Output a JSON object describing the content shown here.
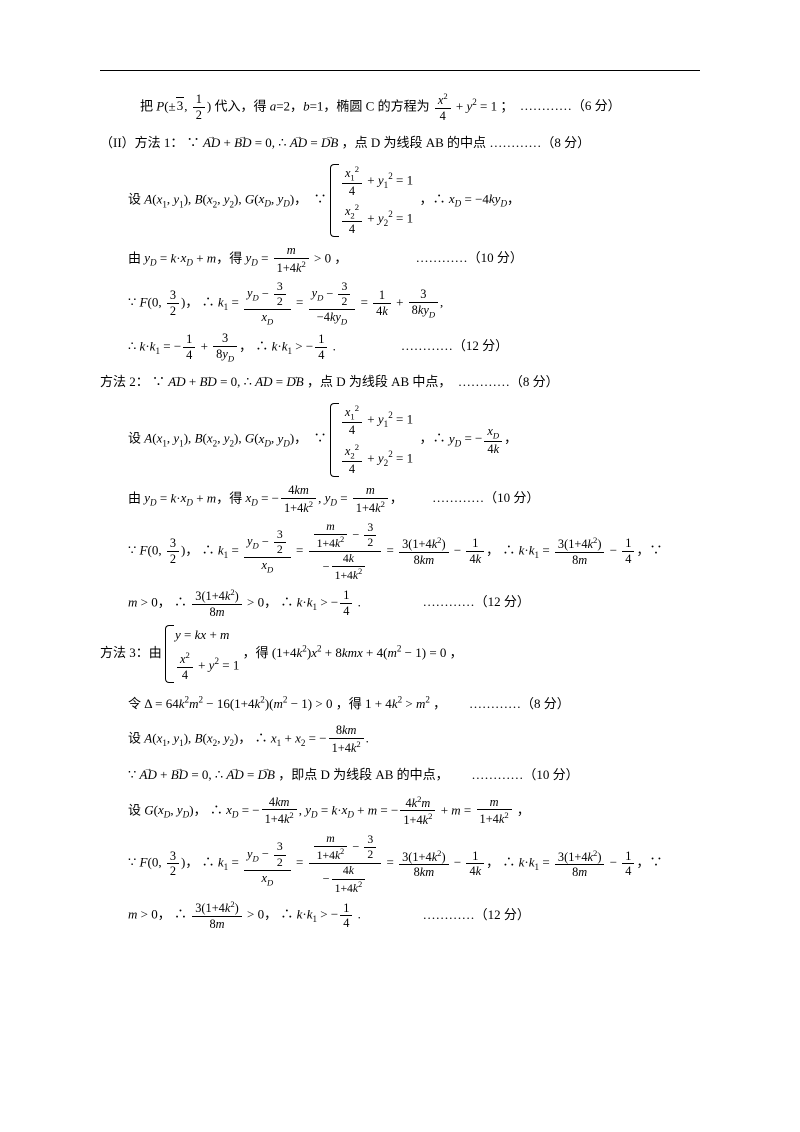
{
  "colors": {
    "text": "#000000",
    "bg": "#ffffff",
    "rule": "#000000"
  },
  "font": {
    "family": "SimSun",
    "size_pt": 10.5,
    "math_family": "Times New Roman"
  },
  "lines": {
    "l1a": "把 ",
    "l1b": " 代入，得 ",
    "l1c": "a",
    "l1d": "=2，",
    "l1e": "b",
    "l1f": "=1，椭圆 C 的方程为 ",
    "l1g": "；",
    "s6": "…………（6 分）",
    "l2a": "（II）方法 1：",
    "l2b": "，点 D 为线段 AB 的中点",
    "s8": "…………（8 分）",
    "l3a": "设 ",
    "l3b": "，",
    "l3c": "，",
    "l4a": "由 ",
    "l4b": "，得 ",
    "l4c": "，",
    "s10": "…………（10 分）",
    "l5a": "，",
    "l6a": "，",
    "l6b": " .",
    "s12": "…………（12 分）",
    "l7a": "方法 2：",
    "l7b": "，点 D 为线段 AB 中点，",
    "l8a": "设 ",
    "l9a": "由 ",
    "l9b": "，得 ",
    "l10a": "，",
    "l11a": "，",
    "l11b": " .",
    "l12a": "方法 3：由 ",
    "l12b": "，得 ",
    "l12c": "，",
    "l13a": "令 ",
    "l13b": "，得 ",
    "l13c": "，",
    "l14a": "设 ",
    "l14b": "，",
    "l15a": "，即点 D 为线段 AB 的中点，",
    "l16a": "设 ",
    "l16b": "，",
    "l16c": "，",
    "l17a": "，"
  },
  "math": {
    "P": "P(±√3, 1/2)",
    "ellipse": "x²/4 + y² = 1",
    "vecAD": "AD",
    "vecBD": "BD",
    "vecDB": "DB",
    "ADplusBD": "∵ AD + BD = 0, ∴ AD = DB",
    "Axy": "A(x₁, y₁), B(x₂, y₂), G(x_D, y_D)",
    "sys1a": "x₁²/4 + y₁² = 1",
    "sys1b": "x₂²/4 + y₂² = 1",
    "xD1": "∴ x_D = −4k y_D",
    "yD1": "y_D = k·x_D + m",
    "yDres": "y_D = m/(1+4k²) > 0",
    "F": "∵ F(0, 3/2)",
    "k1a": "∴ k₁ = (y_D − 3/2)/x_D = (y_D − 3/2)/(−4k y_D) = 1/(4k) + 3/(8k y_D)",
    "kk1a": "∴ k·k₁ = −1/4 + 3/(8y_D)",
    "kk1b": "∴ k·k₁ > −1/4",
    "yD2": "∴ y_D = −x_D/(4k)",
    "xD2": "x_D = −4km/(1+4k²), y_D = m/(1+4k²)",
    "k1b": "∴ k₁ = (y_D − 3/2)/x_D = (m/(1+4k²) − 3/2)/(−4k/(1+4k²)) = 3(1+4k²)/(8km) − 1/(4k)",
    "kk1c": "∴ k·k₁ = 3(1+4k²)/(8m) − 1/4",
    "m0": "m > 0",
    "frac38m": "∴ 3(1+4k²)/(8m) > 0",
    "sys3a": "y = kx + m",
    "sys3b": "x²/4 + y² = 1",
    "quad": "(1+4k²)x² + 8kmx + 4(m² − 1) = 0",
    "delta": "Δ = 64k²m² − 16(1+4k²)(m² − 1) > 0",
    "deltaRes": "1 + 4k² > m²",
    "AB2": "A(x₁, y₁), B(x₂, y₂)",
    "sumx": "∴ x₁ + x₂ = −8km/(1+4k²)",
    "G": "G(x_D, y_D)",
    "xDm3": "∴ x_D = −4km/(1+4k²)",
    "yDm3": "y_D = k·x_D + m = −4k²m/(1+4k²) + m = m/(1+4k²)"
  }
}
